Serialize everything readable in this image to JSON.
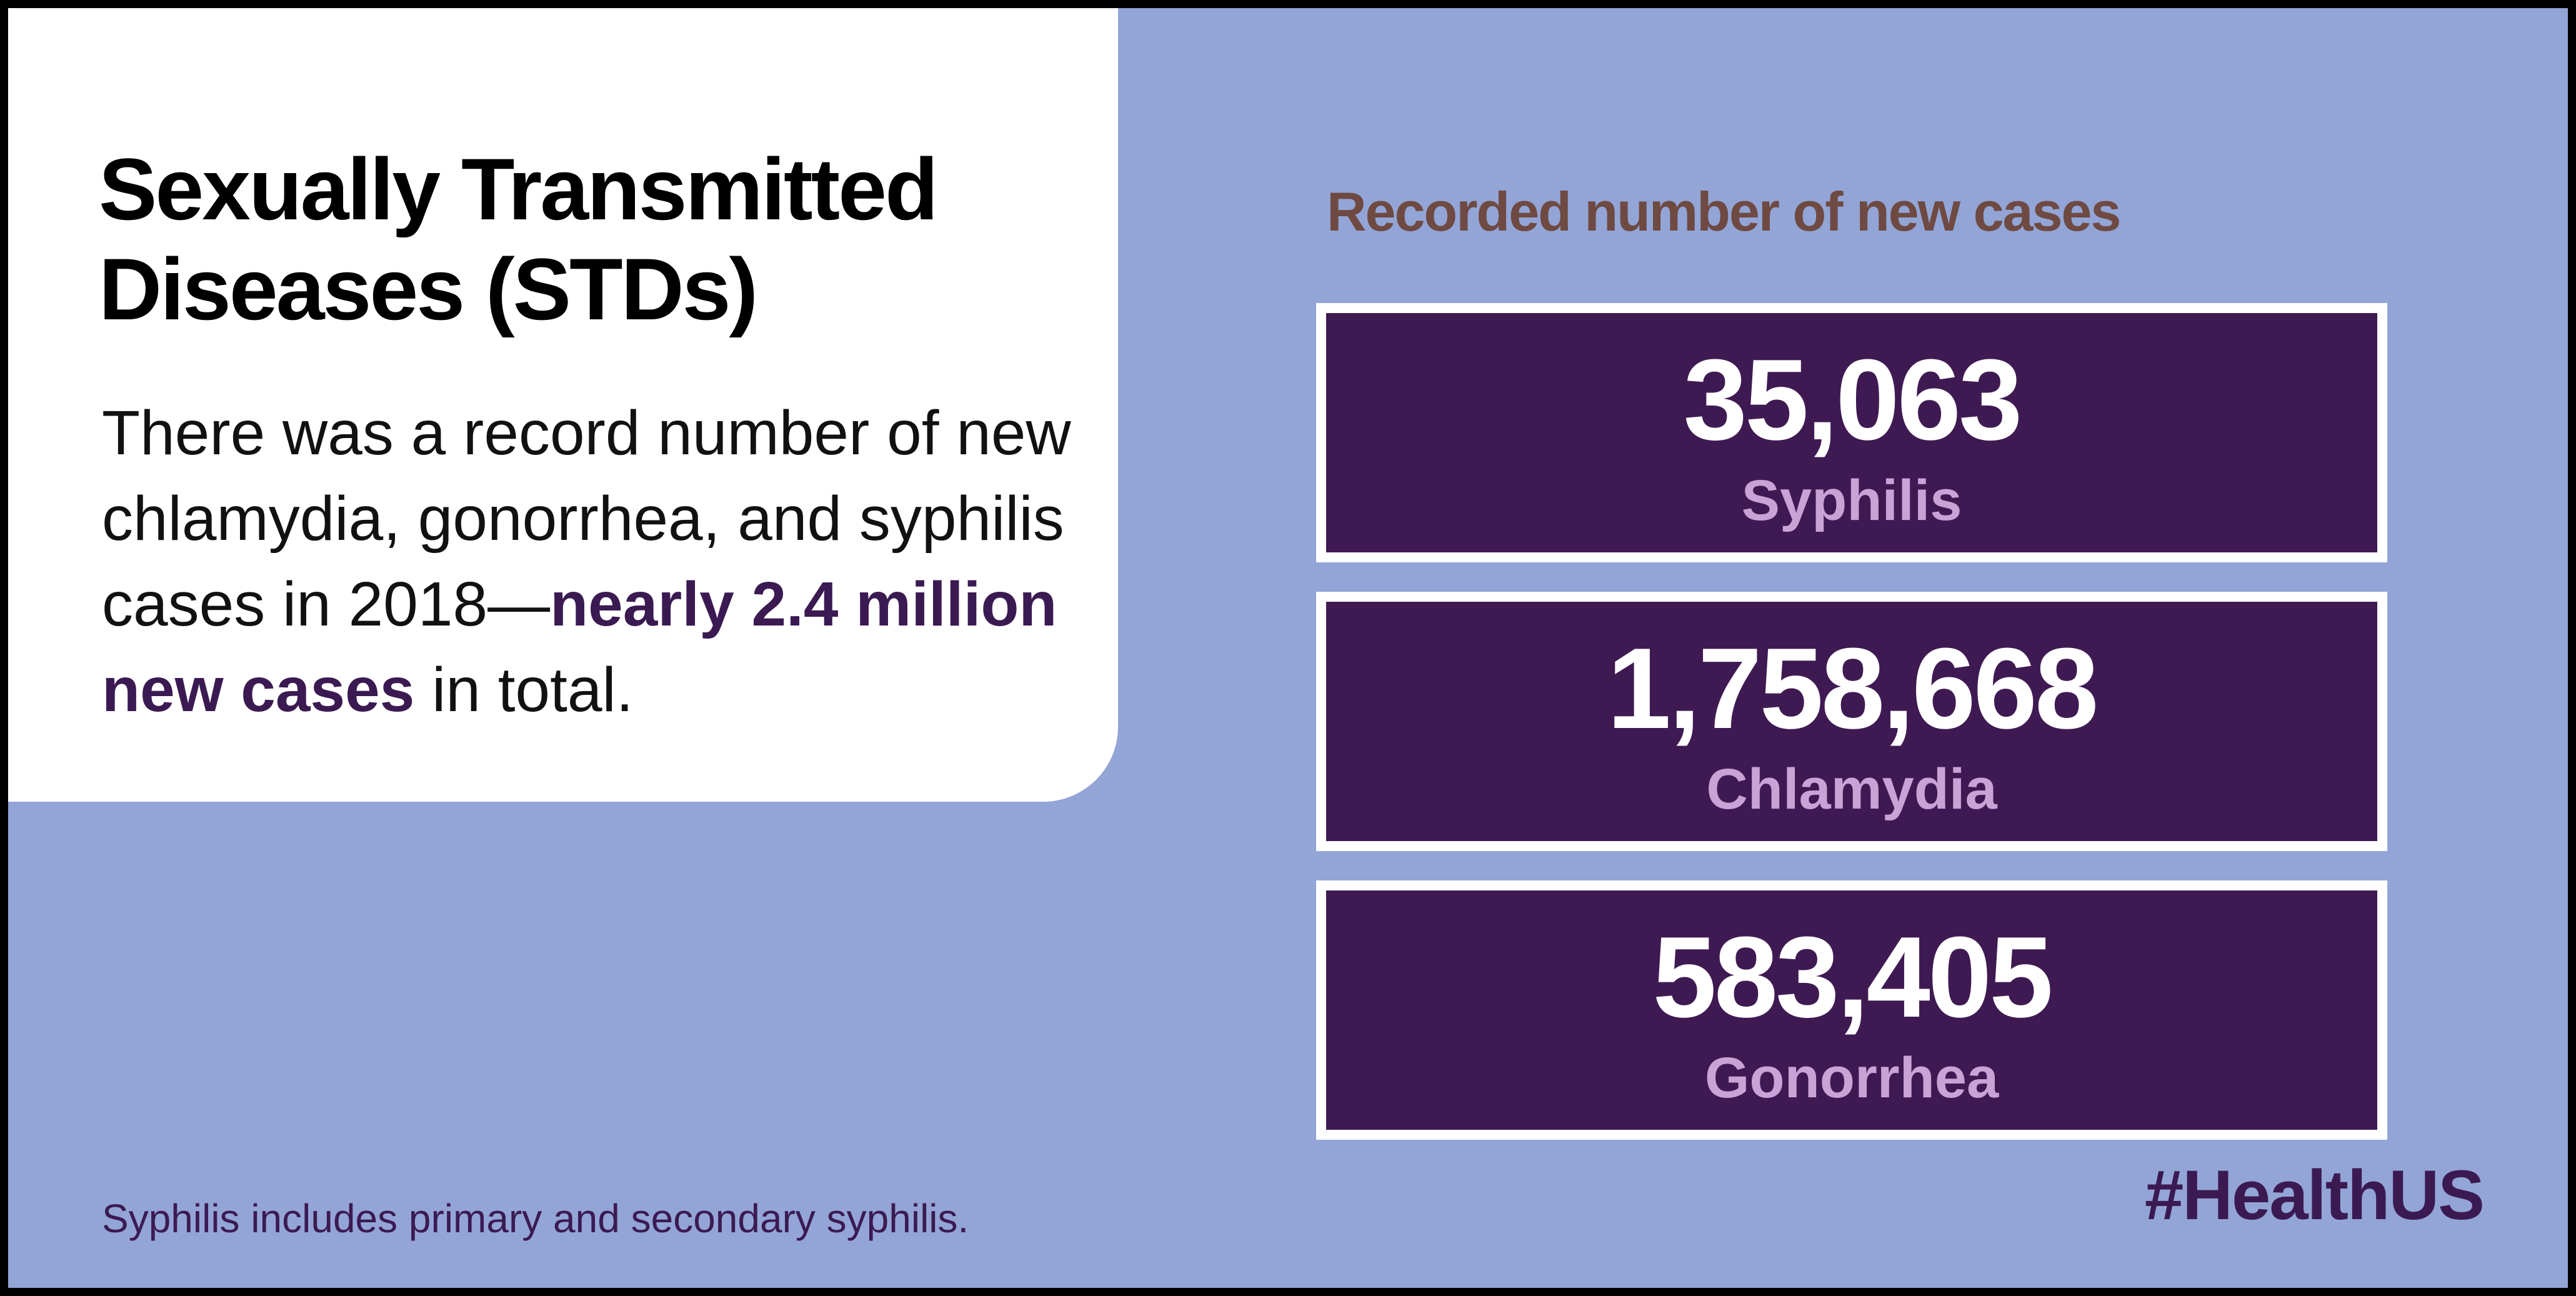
{
  "heading": {
    "line1": "Sexually Transmitted",
    "line2": "Diseases (STDs)"
  },
  "body": {
    "part1": "There was a record number of new chlamydia, gonorrhea, and syphilis cases in 2018—",
    "emphasis": "nearly 2.4 million new cases",
    "part2": " in total."
  },
  "footnote": "Syphilis includes primary and secondary syphilis.",
  "stats_title": "Recorded number of new cases",
  "stats": [
    {
      "value": "35,063",
      "label": "Syphilis"
    },
    {
      "value": "1,758,668",
      "label": "Chlamydia"
    },
    {
      "value": "583,405",
      "label": "Gonorrhea"
    }
  ],
  "hashtag": "#HealthUS",
  "colors": {
    "background": "#93a5d6",
    "card": "#ffffff",
    "box": "#3f1a52",
    "number": "#ffffff",
    "label": "#c9a3d6",
    "accent": "#3b1a52",
    "title": "#6e4a42"
  }
}
